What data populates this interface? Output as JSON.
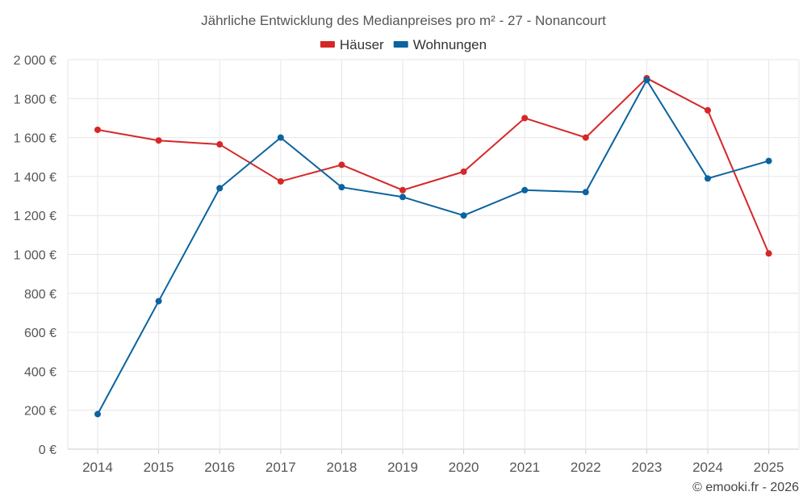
{
  "chart_data": {
    "type": "line",
    "title": "Jährliche Entwicklung des Medianpreises pro m² - 27 - Nonancourt",
    "categories": [
      "2014",
      "2015",
      "2016",
      "2017",
      "2018",
      "2019",
      "2020",
      "2021",
      "2022",
      "2023",
      "2024",
      "2025"
    ],
    "series": [
      {
        "name": "Häuser",
        "color": "#d62728",
        "values": [
          1640,
          1585,
          1565,
          1375,
          1460,
          1330,
          1425,
          1700,
          1600,
          1905,
          1740,
          1005
        ]
      },
      {
        "name": "Wohnungen",
        "color": "#0b63a0",
        "values": [
          180,
          760,
          1340,
          1600,
          1345,
          1295,
          1200,
          1330,
          1320,
          1895,
          1390,
          1480
        ]
      }
    ],
    "y_ticks": [
      0,
      200,
      400,
      600,
      800,
      1000,
      1200,
      1400,
      1600,
      1800,
      2000
    ],
    "y_tick_labels": [
      "0 €",
      "200 €",
      "400 €",
      "600 €",
      "800 €",
      "1 000 €",
      "1 200 €",
      "1 400 €",
      "1 600 €",
      "1 800 €",
      "2 000 €"
    ],
    "ylim": [
      0,
      2000
    ],
    "xlabel": "",
    "ylabel": "",
    "legend_position": "top-center",
    "grid": true
  },
  "credit": "© emooki.fr - 2026"
}
